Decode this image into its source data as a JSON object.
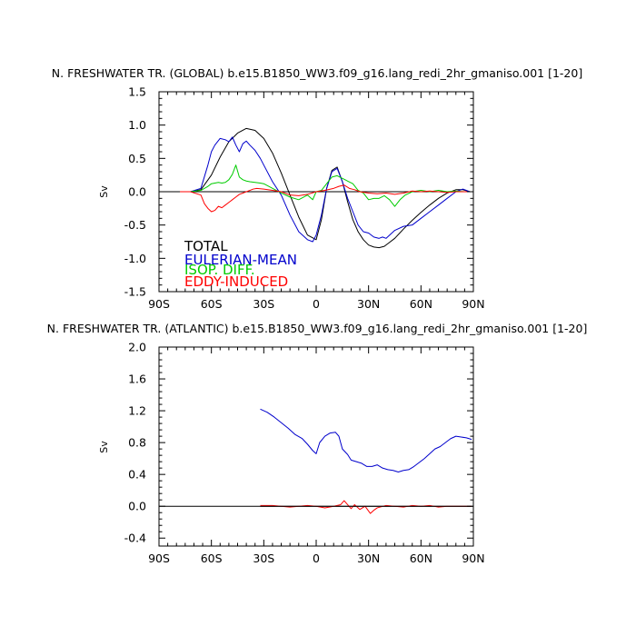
{
  "chart_data": [
    {
      "type": "line",
      "title": "N. FRESHWATER TR. (GLOBAL) b.e15.B1850_WW3.f09_g16.lang_redi_2hr_gmaniso.001 [1-20]",
      "ylabel": "Sv",
      "xlim": [
        -90,
        90
      ],
      "ylim": [
        -1.5,
        1.5
      ],
      "xticks": [
        -90,
        -60,
        -30,
        0,
        30,
        60,
        90
      ],
      "xtick_labels": [
        "90S",
        "60S",
        "30S",
        "0",
        "30N",
        "60N",
        "90N"
      ],
      "yticks": [
        -1.5,
        -1.0,
        -0.5,
        0.0,
        0.5,
        1.0,
        1.5
      ],
      "ytick_labels": [
        "-1.5",
        "-1.0",
        "-0.5",
        "0.0",
        "0.5",
        "1.0",
        "1.5"
      ],
      "zero_line": true,
      "grid": false,
      "legend_placement": "bottom-left",
      "series": [
        {
          "name": "TOTAL",
          "color": "#000000",
          "x": [
            -78,
            -72,
            -66,
            -60,
            -55,
            -50,
            -45,
            -40,
            -35,
            -30,
            -25,
            -20,
            -15,
            -10,
            -5,
            0,
            3,
            6,
            9,
            12,
            15,
            18,
            21,
            24,
            27,
            30,
            33,
            36,
            39,
            42,
            45,
            50,
            55,
            60,
            65,
            70,
            75,
            80,
            84,
            88
          ],
          "y": [
            0.0,
            0.0,
            0.03,
            0.25,
            0.52,
            0.75,
            0.88,
            0.95,
            0.92,
            0.8,
            0.58,
            0.28,
            -0.05,
            -0.38,
            -0.65,
            -0.72,
            -0.42,
            0.05,
            0.32,
            0.37,
            0.15,
            -0.15,
            -0.42,
            -0.6,
            -0.72,
            -0.8,
            -0.83,
            -0.84,
            -0.82,
            -0.76,
            -0.7,
            -0.56,
            -0.43,
            -0.31,
            -0.2,
            -0.1,
            -0.02,
            0.03,
            0.03,
            0.0
          ]
        },
        {
          "name": "EULERIAN-MEAN",
          "color": "#0000cc",
          "x": [
            -78,
            -72,
            -66,
            -62,
            -60,
            -58,
            -55,
            -52,
            -50,
            -48,
            -46,
            -44,
            -42,
            -40,
            -38,
            -35,
            -32,
            -30,
            -25,
            -20,
            -15,
            -10,
            -5,
            -2,
            0,
            3,
            6,
            9,
            12,
            15,
            18,
            21,
            24,
            27,
            30,
            33,
            36,
            38,
            40,
            45,
            50,
            55,
            60,
            65,
            70,
            75,
            80,
            84,
            88
          ],
          "y": [
            0.0,
            0.0,
            0.05,
            0.4,
            0.6,
            0.7,
            0.8,
            0.78,
            0.75,
            0.82,
            0.7,
            0.6,
            0.72,
            0.76,
            0.7,
            0.62,
            0.5,
            0.4,
            0.15,
            -0.05,
            -0.35,
            -0.6,
            -0.72,
            -0.75,
            -0.65,
            -0.35,
            0.05,
            0.3,
            0.35,
            0.15,
            -0.1,
            -0.3,
            -0.5,
            -0.6,
            -0.62,
            -0.68,
            -0.7,
            -0.68,
            -0.7,
            -0.58,
            -0.52,
            -0.5,
            -0.4,
            -0.3,
            -0.2,
            -0.1,
            0.0,
            0.04,
            0.0
          ]
        },
        {
          "name": "ISOP. DIFF.",
          "color": "#00cc00",
          "x": [
            -78,
            -72,
            -66,
            -62,
            -60,
            -58,
            -56,
            -54,
            -52,
            -50,
            -48,
            -46,
            -44,
            -42,
            -40,
            -38,
            -35,
            -32,
            -30,
            -25,
            -20,
            -15,
            -10,
            -5,
            -2,
            0,
            3,
            6,
            9,
            12,
            15,
            18,
            21,
            24,
            27,
            30,
            33,
            36,
            39,
            42,
            45,
            48,
            51,
            55,
            60,
            65,
            70,
            75,
            80,
            85,
            88
          ],
          "y": [
            0.0,
            0.0,
            0.02,
            0.08,
            0.12,
            0.13,
            0.14,
            0.13,
            0.14,
            0.18,
            0.26,
            0.4,
            0.22,
            0.18,
            0.16,
            0.15,
            0.14,
            0.13,
            0.12,
            0.05,
            -0.02,
            -0.08,
            -0.12,
            -0.05,
            -0.12,
            0.0,
            0.02,
            0.12,
            0.22,
            0.24,
            0.2,
            0.16,
            0.12,
            0.02,
            -0.02,
            -0.12,
            -0.1,
            -0.1,
            -0.06,
            -0.12,
            -0.22,
            -0.12,
            -0.05,
            0.0,
            0.02,
            0.0,
            0.02,
            0.0,
            0.01,
            0.0,
            0.0
          ]
        },
        {
          "name": "EDDY-INDUCED",
          "color": "#ff0000",
          "x": [
            -78,
            -72,
            -66,
            -64,
            -62,
            -60,
            -58,
            -56,
            -54,
            -52,
            -50,
            -48,
            -46,
            -44,
            -42,
            -40,
            -38,
            -36,
            -34,
            -30,
            -25,
            -20,
            -15,
            -10,
            -5,
            0,
            5,
            10,
            13,
            16,
            19,
            22,
            25,
            30,
            35,
            40,
            45,
            50,
            55,
            60,
            65,
            70,
            75,
            80,
            85,
            88
          ],
          "y": [
            0.0,
            0.0,
            -0.05,
            -0.18,
            -0.25,
            -0.3,
            -0.28,
            -0.22,
            -0.24,
            -0.2,
            -0.16,
            -0.12,
            -0.08,
            -0.04,
            -0.02,
            0.0,
            0.02,
            0.04,
            0.05,
            0.04,
            0.02,
            0.0,
            -0.05,
            -0.06,
            -0.04,
            0.0,
            0.02,
            0.05,
            0.08,
            0.1,
            0.05,
            0.03,
            0.0,
            -0.02,
            -0.03,
            -0.02,
            -0.04,
            -0.02,
            0.01,
            0.0,
            0.01,
            0.0,
            -0.01,
            0.0,
            0.0,
            0.0
          ]
        }
      ]
    },
    {
      "type": "line",
      "title": "N. FRESHWATER TR. (ATLANTIC) b.e15.B1850_WW3.f09_g16.lang_redi_2hr_gmaniso.001 [1-20]",
      "ylabel": "Sv",
      "xlim": [
        -90,
        90
      ],
      "ylim": [
        -0.5,
        2.0
      ],
      "xticks": [
        -90,
        -60,
        -30,
        0,
        30,
        60,
        90
      ],
      "xtick_labels": [
        "90S",
        "60S",
        "30S",
        "0",
        "30N",
        "60N",
        "90N"
      ],
      "yticks": [
        -0.4,
        0.0,
        0.4,
        0.8,
        1.2,
        1.6,
        2.0
      ],
      "ytick_labels": [
        "-0.4",
        "0.0",
        "0.4",
        "0.8",
        "1.2",
        "1.6",
        "2.0"
      ],
      "zero_line": true,
      "grid": false,
      "series": [
        {
          "color": "#0000cc",
          "x": [
            -32,
            -28,
            -24,
            -20,
            -16,
            -12,
            -8,
            -5,
            -2,
            0,
            2,
            5,
            8,
            11,
            13,
            15,
            18,
            20,
            23,
            26,
            29,
            32,
            35,
            38,
            41,
            44,
            47,
            50,
            53,
            56,
            59,
            62,
            65,
            68,
            71,
            74,
            77,
            80,
            83,
            86,
            89
          ],
          "y": [
            1.22,
            1.18,
            1.12,
            1.05,
            0.98,
            0.9,
            0.85,
            0.78,
            0.7,
            0.66,
            0.8,
            0.88,
            0.92,
            0.93,
            0.88,
            0.72,
            0.65,
            0.58,
            0.56,
            0.54,
            0.5,
            0.5,
            0.52,
            0.48,
            0.46,
            0.45,
            0.43,
            0.45,
            0.46,
            0.5,
            0.55,
            0.6,
            0.66,
            0.72,
            0.75,
            0.8,
            0.85,
            0.88,
            0.87,
            0.86,
            0.84
          ]
        },
        {
          "color": "#ff0000",
          "x": [
            -32,
            -25,
            -20,
            -15,
            -10,
            -5,
            0,
            5,
            10,
            14,
            16,
            18,
            20,
            22,
            25,
            28,
            31,
            33,
            35,
            40,
            45,
            50,
            55,
            60,
            65,
            70,
            75,
            80,
            85,
            89
          ],
          "y": [
            0.01,
            0.01,
            0.0,
            -0.01,
            0.0,
            0.01,
            0.0,
            -0.02,
            0.0,
            0.02,
            0.07,
            0.02,
            -0.03,
            0.02,
            -0.04,
            0.0,
            -0.09,
            -0.05,
            -0.02,
            0.01,
            0.0,
            -0.01,
            0.01,
            0.0,
            0.01,
            -0.01,
            0.0,
            0.0,
            0.0,
            0.0
          ]
        },
        {
          "color": "#000000",
          "x": [
            -32,
            0,
            30,
            60,
            89
          ],
          "y": [
            0.0,
            0.0,
            0.0,
            0.0,
            0.0
          ]
        }
      ]
    }
  ]
}
